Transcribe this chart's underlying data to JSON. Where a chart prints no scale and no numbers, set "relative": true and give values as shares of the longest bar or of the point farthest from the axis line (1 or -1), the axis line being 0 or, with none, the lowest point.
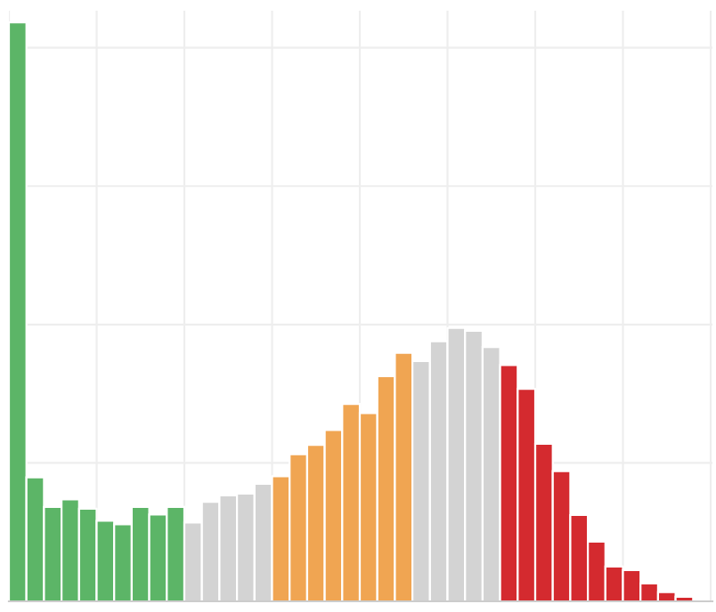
{
  "chart_data": {
    "type": "bar",
    "relative": true,
    "grid": true,
    "categories": [
      null,
      null,
      null,
      null,
      null,
      null,
      null,
      null,
      null,
      null,
      null,
      null,
      null,
      null,
      null,
      null,
      null,
      null,
      null,
      null,
      null,
      null,
      null,
      null,
      null,
      null,
      null,
      null,
      null,
      null,
      null,
      null,
      null,
      null,
      null,
      null,
      null,
      null,
      null
    ],
    "values": [
      1.0,
      0.214,
      0.163,
      0.176,
      0.16,
      0.139,
      0.133,
      0.163,
      0.15,
      0.163,
      0.136,
      0.172,
      0.183,
      0.186,
      0.203,
      0.216,
      0.254,
      0.27,
      0.296,
      0.341,
      0.325,
      0.389,
      0.429,
      0.415,
      0.449,
      0.472,
      0.467,
      0.439,
      0.408,
      0.367,
      0.272,
      0.225,
      0.149,
      0.103,
      0.06,
      0.054,
      0.031,
      0.016,
      0.008
    ],
    "colors": [
      "#5cb567",
      "#5cb567",
      "#5cb567",
      "#5cb567",
      "#5cb567",
      "#5cb567",
      "#5cb567",
      "#5cb567",
      "#5cb567",
      "#5cb567",
      "#d3d3d3",
      "#d3d3d3",
      "#d3d3d3",
      "#d3d3d3",
      "#d3d3d3",
      "#f0a552",
      "#f0a552",
      "#f0a552",
      "#f0a552",
      "#f0a552",
      "#f0a552",
      "#f0a552",
      "#f0a552",
      "#d3d3d3",
      "#d3d3d3",
      "#d3d3d3",
      "#d3d3d3",
      "#d3d3d3",
      "#d42a2f",
      "#d42a2f",
      "#d42a2f",
      "#d42a2f",
      "#d42a2f",
      "#d42a2f",
      "#d42a2f",
      "#d42a2f",
      "#d42a2f",
      "#d42a2f",
      "#d42a2f"
    ]
  }
}
